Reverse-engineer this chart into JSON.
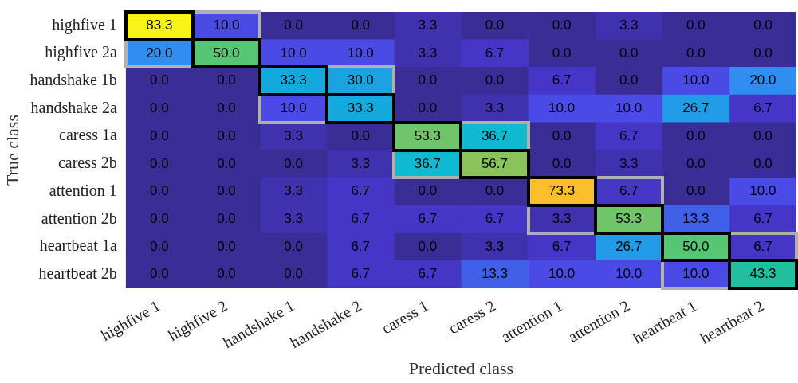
{
  "chart_data": {
    "type": "heatmap",
    "xlabel": "Predicted class",
    "ylabel": "True class",
    "categories": [
      "highfive 1",
      "highfive 2",
      "handshake 1",
      "handshake 2",
      "caress 1",
      "caress 2",
      "attention 1",
      "attention 2",
      "heartbeat 1",
      "heartbeat 2"
    ],
    "y_categories": [
      "highfive 1",
      "highfive 2a",
      "handshake 1b",
      "handshake 2a",
      "caress 1a",
      "caress 2b",
      "attention 1",
      "attention 2b",
      "heartbeat 1a",
      "heartbeat 2b"
    ],
    "cells": [
      [
        83.3,
        10.0,
        0.0,
        0.0,
        3.3,
        0.0,
        0.0,
        3.3,
        0.0,
        0.0
      ],
      [
        20.0,
        50.0,
        10.0,
        10.0,
        3.3,
        6.7,
        0.0,
        0.0,
        0.0,
        0.0
      ],
      [
        0.0,
        0.0,
        33.3,
        30.0,
        0.0,
        0.0,
        6.7,
        0.0,
        10.0,
        20.0
      ],
      [
        0.0,
        0.0,
        10.0,
        33.3,
        0.0,
        3.3,
        10.0,
        10.0,
        26.7,
        6.7
      ],
      [
        0.0,
        0.0,
        3.3,
        0.0,
        53.3,
        36.7,
        0.0,
        6.7,
        0.0,
        0.0
      ],
      [
        0.0,
        0.0,
        0.0,
        3.3,
        36.7,
        56.7,
        0.0,
        3.3,
        0.0,
        0.0
      ],
      [
        0.0,
        0.0,
        3.3,
        6.7,
        0.0,
        0.0,
        73.3,
        6.7,
        0.0,
        10.0
      ],
      [
        0.0,
        0.0,
        3.3,
        6.7,
        6.7,
        6.7,
        3.3,
        53.3,
        13.3,
        6.7
      ],
      [
        0.0,
        0.0,
        0.0,
        6.7,
        0.0,
        3.3,
        6.7,
        26.7,
        50.0,
        6.7
      ],
      [
        0.0,
        0.0,
        0.0,
        6.7,
        6.7,
        13.3,
        10.0,
        10.0,
        10.0,
        43.3
      ]
    ],
    "cell_labels": [
      [
        "83.3",
        "10.0",
        "0.0",
        "0.0",
        "3.3",
        "0.0",
        "0.0",
        "3.3",
        "0.0",
        "0.0"
      ],
      [
        "20.0",
        "50.0",
        "10.0",
        "10.0",
        "3.3",
        "6.7",
        "0.0",
        "0.0",
        "0.0",
        "0.0"
      ],
      [
        "0.0",
        "0.0",
        "33.3",
        "30.0",
        "0.0",
        "0.0",
        "6.7",
        "0.0",
        "10.0",
        "20.0"
      ],
      [
        "0.0",
        "0.0",
        "10.0",
        "33.3",
        "0.0",
        "3.3",
        "10.0",
        "10.0",
        "26.7",
        "6.7"
      ],
      [
        "0.0",
        "0.0",
        "3.3",
        "0.0",
        "53.3",
        "36.7",
        "0.0",
        "6.7",
        "0.0",
        "0.0"
      ],
      [
        "0.0",
        "0.0",
        "0.0",
        "3.3",
        "36.7",
        "56.7",
        "0.0",
        "3.3",
        "0.0",
        "0.0"
      ],
      [
        "0.0",
        "0.0",
        "3.3",
        "6.7",
        "0.0",
        "0.0",
        "73.3",
        "6.7",
        "0.0",
        "10.0"
      ],
      [
        "0.0",
        "0.0",
        "3.3",
        "6.7",
        "6.7",
        "6.7",
        "3.3",
        "53.3",
        "13.3",
        "6.7"
      ],
      [
        "0.0",
        "0.0",
        "0.0",
        "6.7",
        "0.0",
        "3.3",
        "6.7",
        "26.7",
        "50.0",
        "6.7"
      ],
      [
        "0.0",
        "0.0",
        "0.0",
        "6.7",
        "6.7",
        "13.3",
        "10.0",
        "10.0",
        "10.0",
        "43.3"
      ]
    ]
  }
}
